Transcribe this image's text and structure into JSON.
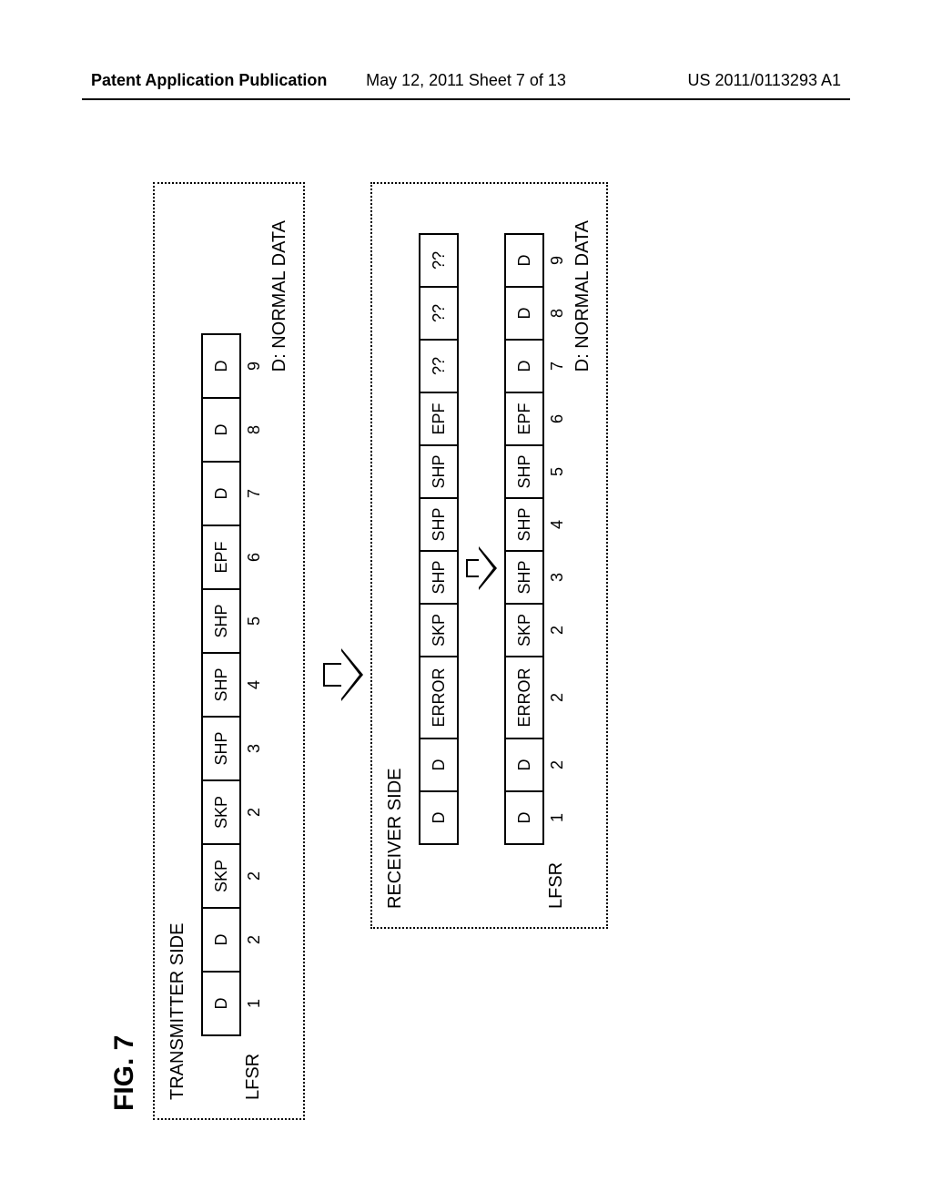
{
  "header": {
    "left": "Patent Application Publication",
    "center": "May 12, 2011  Sheet 7 of 13",
    "right": "US 2011/0113293 A1"
  },
  "figure_label": "FIG. 7",
  "legend": "D: NORMAL DATA",
  "lfsr_label": "LFSR",
  "transmitter": {
    "title": "TRANSMITTER SIDE",
    "cells": [
      "D",
      "D",
      "SKP",
      "SKP",
      "SHP",
      "SHP",
      "SHP",
      "EPF",
      "D",
      "D",
      "D"
    ],
    "widths": [
      72,
      72,
      72,
      72,
      72,
      72,
      72,
      72,
      72,
      72,
      72
    ],
    "nums": [
      "1",
      "2",
      "2",
      "2",
      "3",
      "4",
      "5",
      "6",
      "7",
      "8",
      "9"
    ]
  },
  "receiver": {
    "title": "RECEIVER SIDE",
    "before": {
      "cells": [
        "D",
        "D",
        "ERROR",
        "SKP",
        "SHP",
        "SHP",
        "SHP",
        "EPF",
        "??",
        "??",
        "??"
      ],
      "widths": [
        60,
        60,
        92,
        60,
        60,
        60,
        60,
        60,
        60,
        60,
        60
      ]
    },
    "after": {
      "cells": [
        "D",
        "D",
        "ERROR",
        "SKP",
        "SHP",
        "SHP",
        "SHP",
        "EPF",
        "D",
        "D",
        "D"
      ],
      "widths": [
        60,
        60,
        92,
        60,
        60,
        60,
        60,
        60,
        60,
        60,
        60
      ],
      "nums": [
        "1",
        "2",
        "2",
        "2",
        "3",
        "4",
        "5",
        "6",
        "7",
        "8",
        "9"
      ]
    }
  },
  "colors": {
    "fg": "#000000",
    "bg": "#ffffff"
  }
}
